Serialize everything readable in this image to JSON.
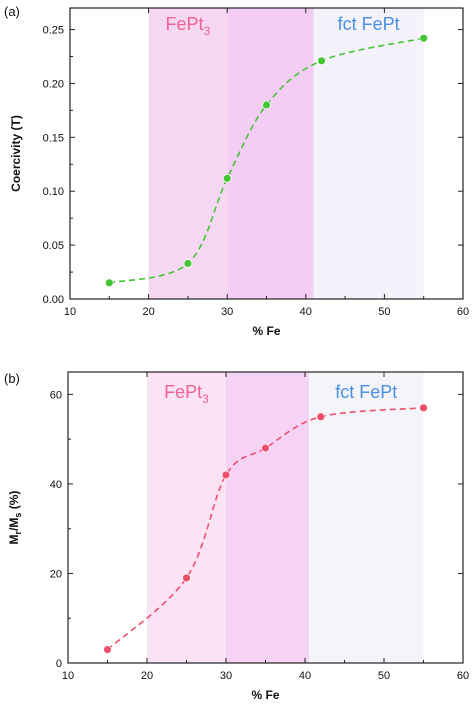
{
  "chart_data": [
    {
      "type": "line",
      "panel_label": "(a)",
      "xlabel": "% Fe",
      "ylabel": "Coercivity (T)",
      "xlim": [
        10,
        60
      ],
      "ylim": [
        0,
        0.27
      ],
      "xticks": [
        10,
        20,
        30,
        40,
        50,
        60
      ],
      "xtick_labels": [
        "10",
        "20",
        "30",
        "40",
        "50",
        "60"
      ],
      "yticks": [
        0.0,
        0.05,
        0.1,
        0.15,
        0.2,
        0.25
      ],
      "ytick_labels": [
        "0.00",
        "0.05",
        "0.10",
        "0.15",
        "0.20",
        "0.25"
      ],
      "grid": false,
      "regions": [
        {
          "label": "FePt",
          "label_sub": "3",
          "x_range": [
            20,
            30
          ],
          "color": "#f7d8f2",
          "label_color": "#f06292"
        },
        {
          "label": "",
          "label_sub": "",
          "x_range": [
            30,
            41
          ],
          "color": "#f3cdf3",
          "label_color": "#f06292"
        },
        {
          "label": "fct FePt",
          "label_sub": "",
          "x_range": [
            41,
            55
          ],
          "color": "#f4f2fa",
          "label_color": "#4a90e2"
        }
      ],
      "series": [
        {
          "x": [
            15,
            25,
            30,
            35,
            42,
            55
          ],
          "values": [
            0.015,
            0.033,
            0.112,
            0.18,
            0.221,
            0.242
          ],
          "color": "#43c534",
          "line_style": "dashed"
        }
      ]
    },
    {
      "type": "line",
      "panel_label": "(b)",
      "xlabel": "% Fe",
      "ylabel": "Mr/Ms (%)",
      "ylabel_main": "M",
      "ylabel_sub1": "r",
      "ylabel_mid": "/M",
      "ylabel_sub2": "s",
      "ylabel_tail": " (%)",
      "xlim": [
        10,
        60
      ],
      "ylim": [
        0,
        65
      ],
      "xticks": [
        10,
        20,
        30,
        40,
        50,
        60
      ],
      "xtick_labels": [
        "10",
        "20",
        "30",
        "40",
        "50",
        "60"
      ],
      "yticks": [
        0,
        20,
        40,
        60
      ],
      "ytick_labels": [
        "0",
        "20",
        "40",
        "60"
      ],
      "grid": false,
      "regions": [
        {
          "label": "FePt",
          "label_sub": "3",
          "x_range": [
            20,
            30
          ],
          "color": "#fbe3f6",
          "label_color": "#f06292"
        },
        {
          "label": "",
          "label_sub": "",
          "x_range": [
            30,
            40.5
          ],
          "color": "#f6d2f4",
          "label_color": "#f06292"
        },
        {
          "label": "fct FePt",
          "label_sub": "",
          "x_range": [
            40.5,
            55
          ],
          "color": "#f5f4fb",
          "label_color": "#4a90e2"
        }
      ],
      "series": [
        {
          "x": [
            15,
            25,
            30,
            35,
            42,
            55
          ],
          "values": [
            3,
            19,
            42,
            48,
            55,
            57
          ],
          "color": "#ef4f6a",
          "line_style": "dashed"
        }
      ]
    }
  ]
}
